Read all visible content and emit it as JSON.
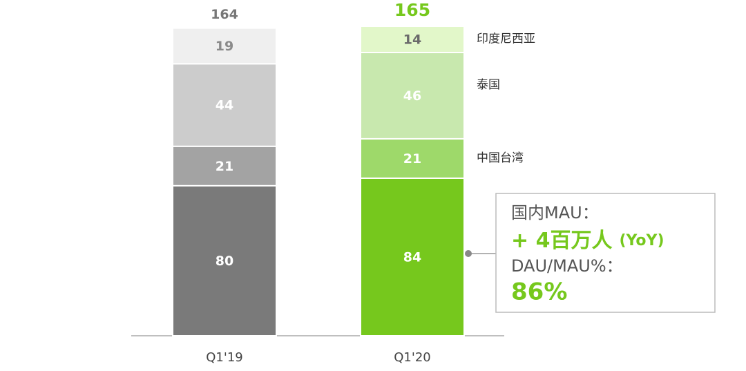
{
  "chart_data": {
    "type": "stacked_bar",
    "categories": [
      "Q1'19",
      "Q1'20"
    ],
    "totals": [
      164,
      165
    ],
    "series": [
      {
        "colors": [
          "#7a7a7a",
          "#76c81d"
        ],
        "values": [
          80,
          84
        ]
      },
      {
        "name": "中国台湾",
        "colors": [
          "#a3a3a3",
          "#9ed96a"
        ],
        "values": [
          21,
          21
        ]
      },
      {
        "name": "泰国",
        "colors": [
          "#cccccc",
          "#c8e8ae"
        ],
        "values": [
          44,
          46
        ]
      },
      {
        "name": "印度尼西亚",
        "colors": [
          "#efefef",
          "#e2f7c9"
        ],
        "values": [
          19,
          14
        ]
      }
    ],
    "annotation": {
      "line1": "国内MAU：",
      "line2": "+ 4百万人",
      "line2_note": "(YoY)",
      "line3": "DAU/MAU%：",
      "line4": "86%"
    }
  }
}
